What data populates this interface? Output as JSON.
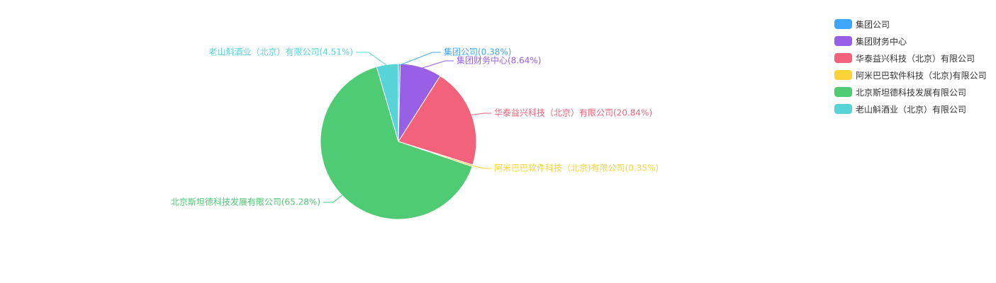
{
  "chart_data": {
    "type": "pie",
    "slices": [
      {
        "label": "集团公司(0.38%)",
        "name": "集团公司",
        "value": 0.38,
        "color": "#3fa7f8"
      },
      {
        "label": "集团财务中心(8.64%)",
        "name": "集团财务中心",
        "value": 8.64,
        "color": "#9860e5"
      },
      {
        "label": "华泰益兴科技（北京）有限公司(20.84%)",
        "name": "华泰益兴科技（北京）有限公司",
        "value": 20.84,
        "color": "#f2637b"
      },
      {
        "label": "阿米巴巴软件科技（北京)有限公司(0.35%)",
        "name": "阿米巴巴软件科技（北京)有限公司",
        "value": 0.35,
        "color": "#fad337"
      },
      {
        "label": "北京斯坦德科技发展有限公司(65.28%)",
        "name": "北京斯坦德科技发展有限公司",
        "value": 65.28,
        "color": "#4ecb73"
      },
      {
        "label": "老山斛酒业（北京）有限公司(4.51%)",
        "name": "老山斛酒业（北京）有限公司",
        "value": 4.51,
        "color": "#58d4d8"
      }
    ],
    "legend_position": "top-right"
  }
}
